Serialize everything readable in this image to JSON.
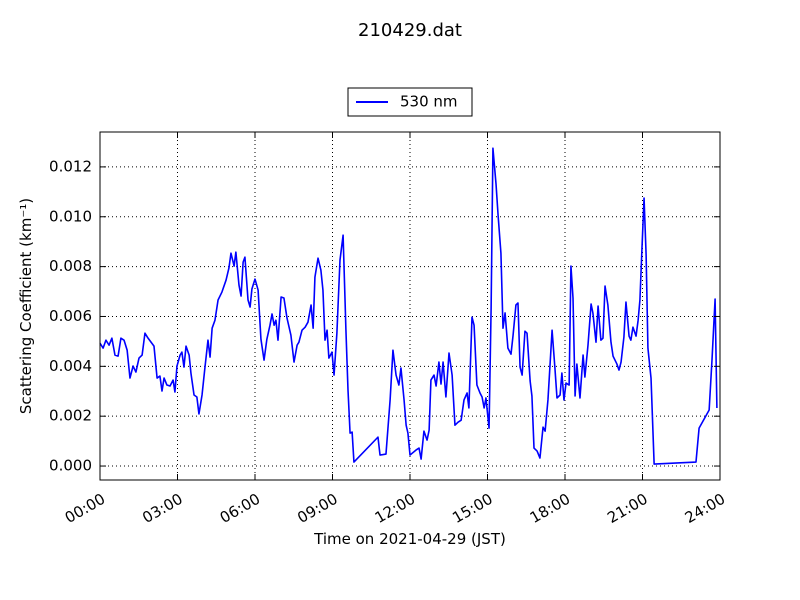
{
  "chart_data": {
    "type": "line",
    "title": "210429.dat",
    "x_label": "Time on 2021-04-29 (JST)",
    "y_label": "Scattering Coefficient (km⁻¹)",
    "legend": "above",
    "grid": true,
    "xlim": [
      0,
      24
    ],
    "ylim": [
      -0.00056,
      0.0134
    ],
    "xticks": [
      {
        "value": 0,
        "label": "00:00"
      },
      {
        "value": 3,
        "label": "03:00"
      },
      {
        "value": 6,
        "label": "06:00"
      },
      {
        "value": 9,
        "label": "09:00"
      },
      {
        "value": 12,
        "label": "12:00"
      },
      {
        "value": 15,
        "label": "15:00"
      },
      {
        "value": 18,
        "label": "18:00"
      },
      {
        "value": 21,
        "label": "21:00"
      },
      {
        "value": 24,
        "label": "24:00"
      }
    ],
    "yticks": [
      {
        "value": 0,
        "label": "0.000"
      },
      {
        "value": 0.002,
        "label": "0.002"
      },
      {
        "value": 0.004,
        "label": "0.004"
      },
      {
        "value": 0.006,
        "label": "0.006"
      },
      {
        "value": 0.008,
        "label": "0.008"
      },
      {
        "value": 0.01,
        "label": "0.010"
      },
      {
        "value": 0.012,
        "label": "0.012"
      }
    ],
    "x": [
      0,
      0.12,
      0.23,
      0.35,
      0.46,
      0.58,
      0.7,
      0.81,
      0.93,
      1.05,
      1.16,
      1.28,
      1.39,
      1.51,
      1.63,
      1.74,
      1.86,
      2.09,
      2.21,
      2.32,
      2.4,
      2.48,
      2.59,
      2.71,
      2.83,
      2.9,
      2.98,
      3.1,
      3.17,
      3.25,
      3.33,
      3.45,
      3.52,
      3.64,
      3.75,
      3.83,
      3.95,
      4.06,
      4.18,
      4.26,
      4.34,
      4.45,
      4.57,
      4.72,
      4.88,
      4.99,
      5.07,
      5.19,
      5.26,
      5.38,
      5.46,
      5.54,
      5.61,
      5.73,
      5.81,
      5.88,
      6.0,
      6.12,
      6.23,
      6.35,
      6.46,
      6.58,
      6.66,
      6.74,
      6.81,
      6.89,
      7.01,
      7.12,
      7.24,
      7.39,
      7.51,
      7.63,
      7.7,
      7.82,
      7.94,
      8.05,
      8.17,
      8.25,
      8.32,
      8.44,
      8.55,
      8.63,
      8.71,
      8.79,
      8.86,
      8.98,
      9.06,
      9.17,
      9.29,
      9.41,
      9.52,
      9.6,
      9.68,
      9.76,
      9.83,
      10.76,
      10.84,
      11.07,
      11.23,
      11.34,
      11.46,
      11.57,
      11.65,
      11.77,
      11.85,
      11.92,
      12.0,
      12.23,
      12.35,
      12.43,
      12.54,
      12.66,
      12.74,
      12.81,
      12.93,
      13.01,
      13.12,
      13.2,
      13.28,
      13.39,
      13.51,
      13.63,
      13.74,
      13.86,
      13.98,
      14.09,
      14.21,
      14.28,
      14.4,
      14.48,
      14.59,
      14.71,
      14.79,
      14.87,
      14.94,
      15.06,
      15.14,
      15.21,
      15.33,
      15.41,
      15.52,
      15.6,
      15.68,
      15.79,
      15.91,
      15.99,
      16.1,
      16.18,
      16.26,
      16.34,
      16.45,
      16.53,
      16.65,
      16.72,
      16.8,
      16.92,
      17.03,
      17.15,
      17.23,
      17.34,
      17.5,
      17.61,
      17.69,
      17.81,
      17.88,
      17.96,
      18.04,
      18.16,
      18.23,
      18.31,
      18.39,
      18.46,
      18.58,
      18.7,
      18.77,
      18.89,
      19.01,
      19.08,
      19.2,
      19.28,
      19.39,
      19.47,
      19.55,
      19.66,
      19.78,
      19.86,
      20.01,
      20.09,
      20.17,
      20.28,
      20.36,
      20.48,
      20.55,
      20.63,
      20.75,
      20.83,
      20.9,
      20.98,
      21.06,
      21.14,
      21.21,
      21.33,
      21.45,
      23.07,
      23.19,
      23.58,
      23.69,
      23.81,
      23.88
    ],
    "series": [
      {
        "name": "530 nm",
        "color": "#0000ff",
        "values": [
          0.00493,
          0.00473,
          0.00505,
          0.00485,
          0.00513,
          0.00445,
          0.00441,
          0.00513,
          0.00505,
          0.00465,
          0.00353,
          0.00401,
          0.00377,
          0.00433,
          0.00445,
          0.00533,
          0.00513,
          0.00481,
          0.00353,
          0.00361,
          0.00301,
          0.00353,
          0.00325,
          0.00321,
          0.00345,
          0.00297,
          0.00401,
          0.00445,
          0.00457,
          0.00397,
          0.00481,
          0.00445,
          0.00373,
          0.00285,
          0.00277,
          0.00209,
          0.00285,
          0.00393,
          0.00505,
          0.00437,
          0.00553,
          0.00585,
          0.00666,
          0.00698,
          0.00746,
          0.00794,
          0.00854,
          0.00802,
          0.00858,
          0.00726,
          0.00682,
          0.00818,
          0.00838,
          0.00666,
          0.00638,
          0.0071,
          0.0075,
          0.00706,
          0.00509,
          0.00425,
          0.00509,
          0.00565,
          0.0061,
          0.00565,
          0.00585,
          0.00505,
          0.00678,
          0.00674,
          0.00593,
          0.00525,
          0.00417,
          0.00485,
          0.00497,
          0.00545,
          0.00557,
          0.00577,
          0.00646,
          0.00553,
          0.00758,
          0.00834,
          0.00786,
          0.00706,
          0.00505,
          0.00545,
          0.00433,
          0.00457,
          0.00365,
          0.00533,
          0.00826,
          0.00926,
          0.00545,
          0.00305,
          0.00132,
          0.00136,
          0.00016,
          0.00116,
          0.00044,
          0.00048,
          0.00265,
          0.00465,
          0.00365,
          0.00325,
          0.00393,
          0.00265,
          0.00164,
          0.00132,
          0.00044,
          0.00064,
          0.00072,
          0.00028,
          0.0014,
          0.00104,
          0.00144,
          0.00345,
          0.00365,
          0.00321,
          0.00417,
          0.00329,
          0.00417,
          0.00277,
          0.00453,
          0.00365,
          0.00164,
          0.00176,
          0.00184,
          0.00265,
          0.00293,
          0.00233,
          0.00597,
          0.00565,
          0.00325,
          0.00293,
          0.00277,
          0.00233,
          0.00273,
          0.00152,
          0.00634,
          0.01275,
          0.01131,
          0.01006,
          0.00854,
          0.00553,
          0.00614,
          0.00473,
          0.00449,
          0.00525,
          0.00646,
          0.00654,
          0.00397,
          0.00365,
          0.00541,
          0.00533,
          0.00341,
          0.00281,
          0.00072,
          0.0006,
          0.00032,
          0.00156,
          0.0014,
          0.00265,
          0.00545,
          0.00393,
          0.00273,
          0.00285,
          0.00373,
          0.00265,
          0.00333,
          0.00325,
          0.00802,
          0.00674,
          0.00281,
          0.00409,
          0.00273,
          0.00445,
          0.00357,
          0.00485,
          0.0065,
          0.00614,
          0.00497,
          0.00642,
          0.00505,
          0.00513,
          0.00722,
          0.00646,
          0.00497,
          0.00441,
          0.00409,
          0.00385,
          0.00417,
          0.00517,
          0.00658,
          0.00521,
          0.00505,
          0.00557,
          0.00521,
          0.00585,
          0.00666,
          0.00874,
          0.01075,
          0.00846,
          0.00473,
          0.00353,
          8e-05,
          0.00016,
          0.00152,
          0.00225,
          0.00425,
          0.0067,
          0.00233
        ]
      }
    ]
  }
}
